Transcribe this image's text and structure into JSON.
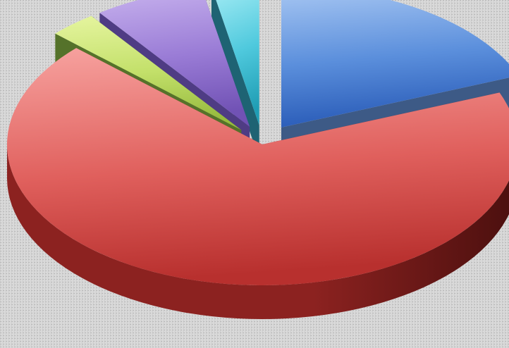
{
  "chart_data": {
    "type": "pie",
    "title": "",
    "legend": "none",
    "values": [
      19,
      68,
      3,
      7,
      3
    ],
    "colors": {
      "blue": {
        "light": "#a9c8f3",
        "mid": "#5b8fdc",
        "dark": "#2a5cb8",
        "side": "#3d5a86",
        "sideDark": "#263a5a"
      },
      "red": {
        "light": "#f7a3a0",
        "mid": "#e0605d",
        "dark": "#b8302e",
        "side": "#8c2220",
        "sideDark": "#4a0f0e"
      },
      "green": {
        "light": "#e6f5a0",
        "mid": "#c3e06a",
        "dark": "#97bb3f",
        "side": "#55722a",
        "sideDark": "#33441a"
      },
      "purple": {
        "light": "#c9b4ef",
        "mid": "#9a7cd6",
        "dark": "#7152b5",
        "side": "#4f3c84",
        "sideDark": "#2f2350"
      },
      "teal": {
        "light": "#a8eef6",
        "mid": "#4fc9dd",
        "dark": "#1f9db4",
        "side": "#1e6373",
        "sideDark": "#123c45"
      }
    },
    "slice_colors": [
      "blue",
      "red",
      "green",
      "purple",
      "teal"
    ],
    "background": {
      "base": "#d9d9d9",
      "dot": "#b3b3b3"
    }
  }
}
